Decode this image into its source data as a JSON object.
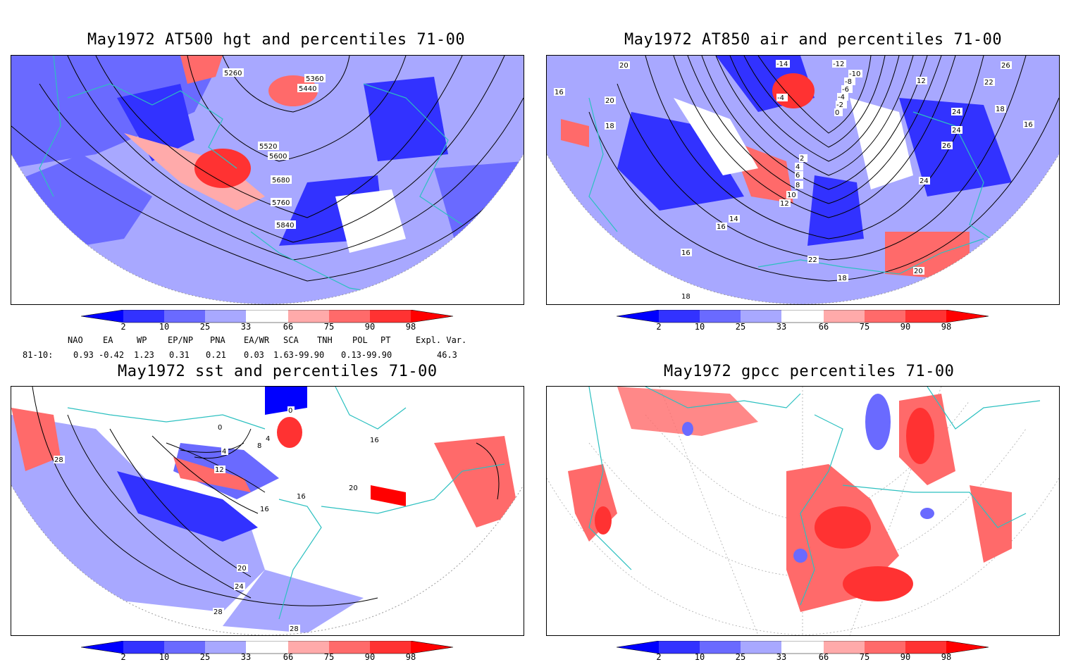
{
  "panels": {
    "p1": {
      "title": "May1972 AT500 hgt and percentiles 71-00",
      "contour_labels": [
        "5260",
        "5360",
        "5440",
        "5520",
        "5600",
        "5680",
        "5760",
        "5840"
      ]
    },
    "p2": {
      "title": "May1972 AT850 air and percentiles 71-00",
      "contour_labels": [
        "-14",
        "-12",
        "-10",
        "-8",
        "-6",
        "-4",
        "-2",
        "0",
        "-4",
        "2",
        "4",
        "6",
        "8",
        "10",
        "12",
        "14",
        "16",
        "16",
        "18",
        "18",
        "20",
        "20",
        "22",
        "22",
        "24",
        "24",
        "24",
        "26",
        "26",
        "12",
        "16",
        "18",
        "16",
        "20",
        "18"
      ]
    },
    "p3": {
      "title": "May1972 sst and percentiles 71-00",
      "contour_labels": [
        "0",
        "0",
        "4",
        "8",
        "4",
        "12",
        "16",
        "16",
        "16",
        "20",
        "20",
        "24",
        "28",
        "28",
        "28"
      ]
    },
    "p4": {
      "title": "May1972 gpcc percentiles 71-00",
      "contour_labels": []
    }
  },
  "colorbar": {
    "labels": [
      "2",
      "10",
      "25",
      "33",
      "66",
      "75",
      "90",
      "98"
    ],
    "colors": [
      "#0000ff",
      "#3232ff",
      "#6a6aff",
      "#a8a8ff",
      "#ffffff",
      "#ffaaaa",
      "#ff6a6a",
      "#ff3232",
      "#ff0000"
    ]
  },
  "indices": {
    "headers": [
      "NAO",
      "EA",
      "WP",
      "EP/NP",
      "PNA",
      "EA/WR",
      "SCA",
      "TNH",
      "POL",
      "PT",
      "Expl. Var."
    ],
    "row_label": "81-10:",
    "values": [
      "0.93",
      "-0.42",
      "1.23",
      "0.31",
      "0.21",
      "0.03",
      "1.63-99.90",
      "0.13-99.90",
      "46.3"
    ]
  },
  "map_colors": {
    "coast": "#2cc0c0",
    "grid": "#999999"
  }
}
